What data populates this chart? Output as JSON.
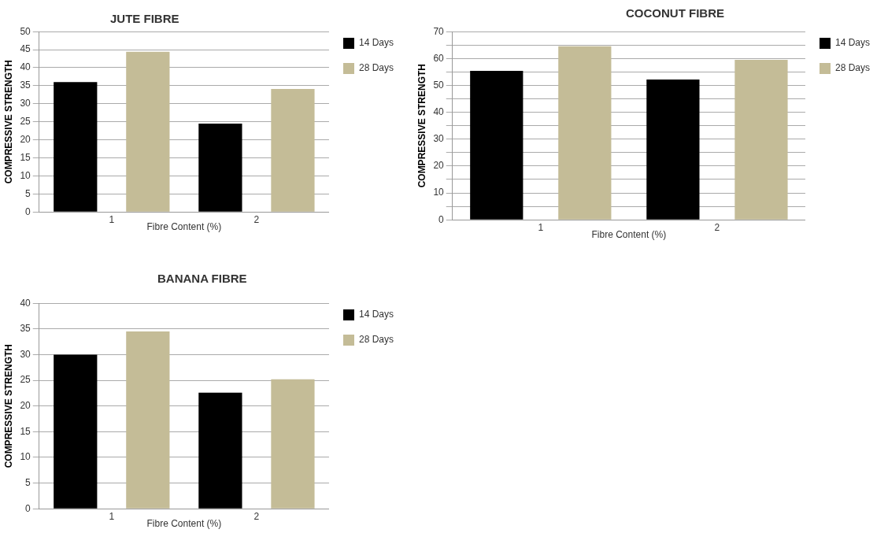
{
  "chart_data": [
    {
      "type": "bar",
      "title": "JUTE FIBRE",
      "xlabel": "Fibre Content (%)",
      "ylabel": "COMPRESSIVE STRENGTH",
      "categories": [
        "1",
        "2"
      ],
      "series": [
        {
          "name": "14 Days",
          "color": "#000000",
          "values": [
            36,
            24.5
          ]
        },
        {
          "name": "28 Days",
          "color": "#c4bc97",
          "values": [
            44.4,
            34.1
          ]
        }
      ],
      "ylim": [
        0,
        50
      ],
      "yticks": [
        0,
        5,
        10,
        15,
        20,
        25,
        30,
        35,
        40,
        45,
        50
      ],
      "grid": "y",
      "legend": "right"
    },
    {
      "type": "bar",
      "title": "COCONUT FIBRE",
      "xlabel": "Fibre Content (%)",
      "ylabel": "COMPRESSIVE STRENGTH",
      "categories": [
        "1",
        "2"
      ],
      "series": [
        {
          "name": "14 Days",
          "color": "#000000",
          "values": [
            55.4,
            52.2
          ]
        },
        {
          "name": "28 Days",
          "color": "#c4bc97",
          "values": [
            64.6,
            59.5
          ]
        }
      ],
      "ylim": [
        0,
        70
      ],
      "yticks": [
        0,
        {
          "value": 5,
          "label": null
        },
        10,
        {
          "value": 15,
          "label": null
        },
        20,
        {
          "value": 25,
          "label": null
        },
        30,
        {
          "value": 35,
          "label": null
        },
        40,
        {
          "value": 45,
          "label": null
        },
        50,
        {
          "value": 55,
          "label": null
        },
        60,
        {
          "value": 65,
          "label": null
        },
        70
      ],
      "grid": "y",
      "legend": "right"
    },
    {
      "type": "bar",
      "title": "BANANA  FIBRE",
      "xlabel": "Fibre Content (%)",
      "ylabel": "COMPRESSIVE STRENGTH",
      "categories": [
        "1",
        "2"
      ],
      "series": [
        {
          "name": "14 Days",
          "color": "#000000",
          "values": [
            30,
            22.6
          ]
        },
        {
          "name": "28 Days",
          "color": "#c4bc97",
          "values": [
            34.5,
            25.2
          ]
        }
      ],
      "ylim": [
        0,
        40
      ],
      "yticks": [
        0,
        5,
        10,
        15,
        20,
        25,
        30,
        35,
        40
      ],
      "grid": "y",
      "legend": "right"
    }
  ]
}
